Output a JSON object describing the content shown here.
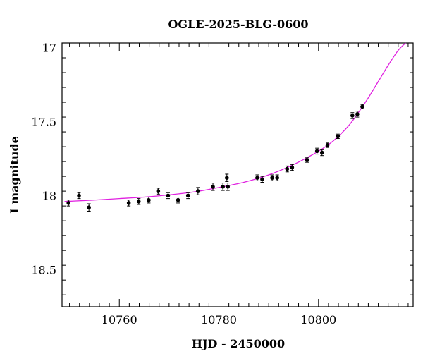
{
  "chart_data": {
    "type": "scatter",
    "title": "OGLE-2025-BLG-0600",
    "xlabel": "HJD - 2450000",
    "ylabel": "I magnitude",
    "xlim": [
      10748.5,
      10819
    ],
    "ylim": [
      18.75,
      16.97
    ],
    "y_inverted": true,
    "grid": false,
    "x_ticks": [
      10760,
      10780,
      10800
    ],
    "x_tick_labels": [
      "10760",
      "10780",
      "10800"
    ],
    "x_minor_step": 2,
    "y_ticks": [
      17,
      17.5,
      18,
      18.5
    ],
    "y_tick_labels": [
      "17",
      "17.5",
      "18",
      "18.5"
    ],
    "y_minor_step": 0.1,
    "colors": {
      "model": "#e020e0",
      "points": "#000000",
      "axes": "#000000"
    },
    "series": [
      {
        "kind": "points-with-errorbars",
        "x": [
          10749.8,
          10751.9,
          10753.9,
          10761.9,
          10763.9,
          10765.9,
          10767.8,
          10769.8,
          10771.8,
          10773.8,
          10775.8,
          10778.8,
          10780.8,
          10781.6,
          10781.8,
          10787.7,
          10788.7,
          10790.7,
          10791.7,
          10793.7,
          10794.7,
          10797.7,
          10799.7,
          10800.7,
          10801.8,
          10803.9,
          10806.8,
          10807.8,
          10808.8
        ],
        "y": [
          18.05,
          18.0,
          18.08,
          18.05,
          18.04,
          18.03,
          17.97,
          18.0,
          18.03,
          18.0,
          17.97,
          17.94,
          17.94,
          17.88,
          17.94,
          17.88,
          17.89,
          17.88,
          17.88,
          17.82,
          17.81,
          17.76,
          17.7,
          17.71,
          17.66,
          17.6,
          17.46,
          17.45,
          17.4
        ],
        "err": [
          0.02,
          0.02,
          0.025,
          0.02,
          0.02,
          0.02,
          0.02,
          0.02,
          0.02,
          0.02,
          0.025,
          0.025,
          0.025,
          0.025,
          0.025,
          0.02,
          0.02,
          0.02,
          0.02,
          0.02,
          0.02,
          0.015,
          0.02,
          0.02,
          0.015,
          0.015,
          0.02,
          0.02,
          0.015
        ]
      },
      {
        "kind": "model-curve",
        "x": [
          10749,
          10752,
          10755,
          10760,
          10765,
          10770,
          10775,
          10780,
          10785,
          10790,
          10795,
          10800,
          10803,
          10806,
          10808,
          10810,
          10812,
          10814,
          10816,
          10817.5
        ],
        "y": [
          18.04,
          18.035,
          18.03,
          18.02,
          18.01,
          17.995,
          17.975,
          17.945,
          17.91,
          17.86,
          17.79,
          17.7,
          17.63,
          17.53,
          17.44,
          17.34,
          17.23,
          17.12,
          17.02,
          16.97
        ]
      }
    ]
  }
}
